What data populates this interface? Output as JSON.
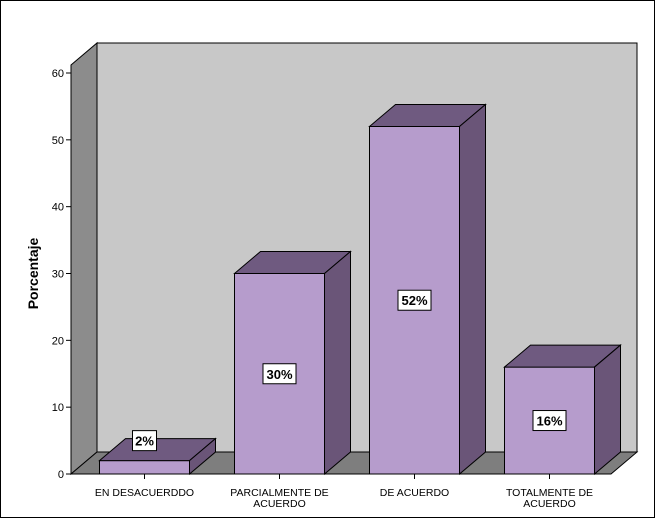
{
  "chart_data": {
    "type": "bar",
    "title": "",
    "xlabel": "",
    "ylabel": "Porcentaje",
    "ylim": [
      0,
      60
    ],
    "yticks": [
      0,
      10,
      20,
      30,
      40,
      50,
      60
    ],
    "grid": false,
    "three_d": true,
    "categories": [
      [
        "EN DESACUERDDO"
      ],
      [
        "PARCIALMENTE DE",
        "ACUERDO"
      ],
      [
        "DE ACUERDO"
      ],
      [
        "TOTALMENTE DE",
        "ACUERDO"
      ]
    ],
    "values": [
      2,
      30,
      52,
      16
    ],
    "data_labels": [
      "2%",
      "30%",
      "52%",
      "16%"
    ],
    "colors": {
      "bar_front": "#b69ccc",
      "bar_top": "#6f5a80",
      "bar_side": "#6a5578",
      "wall": "#c8c8c8",
      "wall_side": "#8c8c8c",
      "floor": "#7e7e7e"
    }
  }
}
